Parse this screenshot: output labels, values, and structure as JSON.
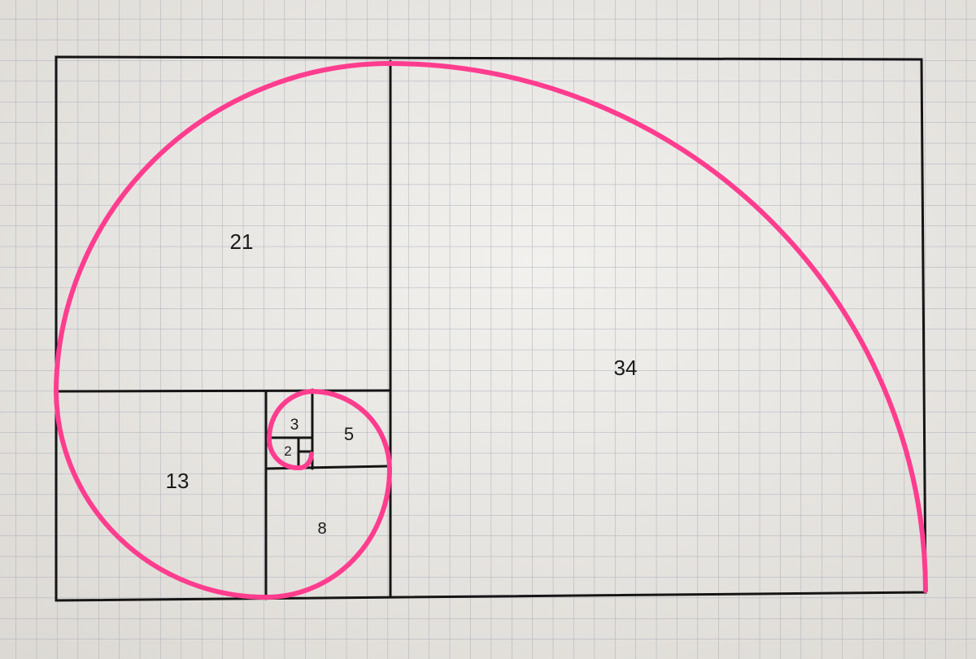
{
  "drawing": {
    "description_kind": "hand-drawn golden rectangle on graph paper",
    "square_labels": {
      "s34": "34",
      "s21": "21",
      "s13": "13",
      "s8": "8",
      "s5": "5",
      "s3": "3",
      "s2": "2"
    },
    "colors": {
      "paper": "#e9e7e3",
      "grid": "#9fa3b6",
      "ink": "#151515",
      "spiral": "#ff3d8f"
    }
  }
}
